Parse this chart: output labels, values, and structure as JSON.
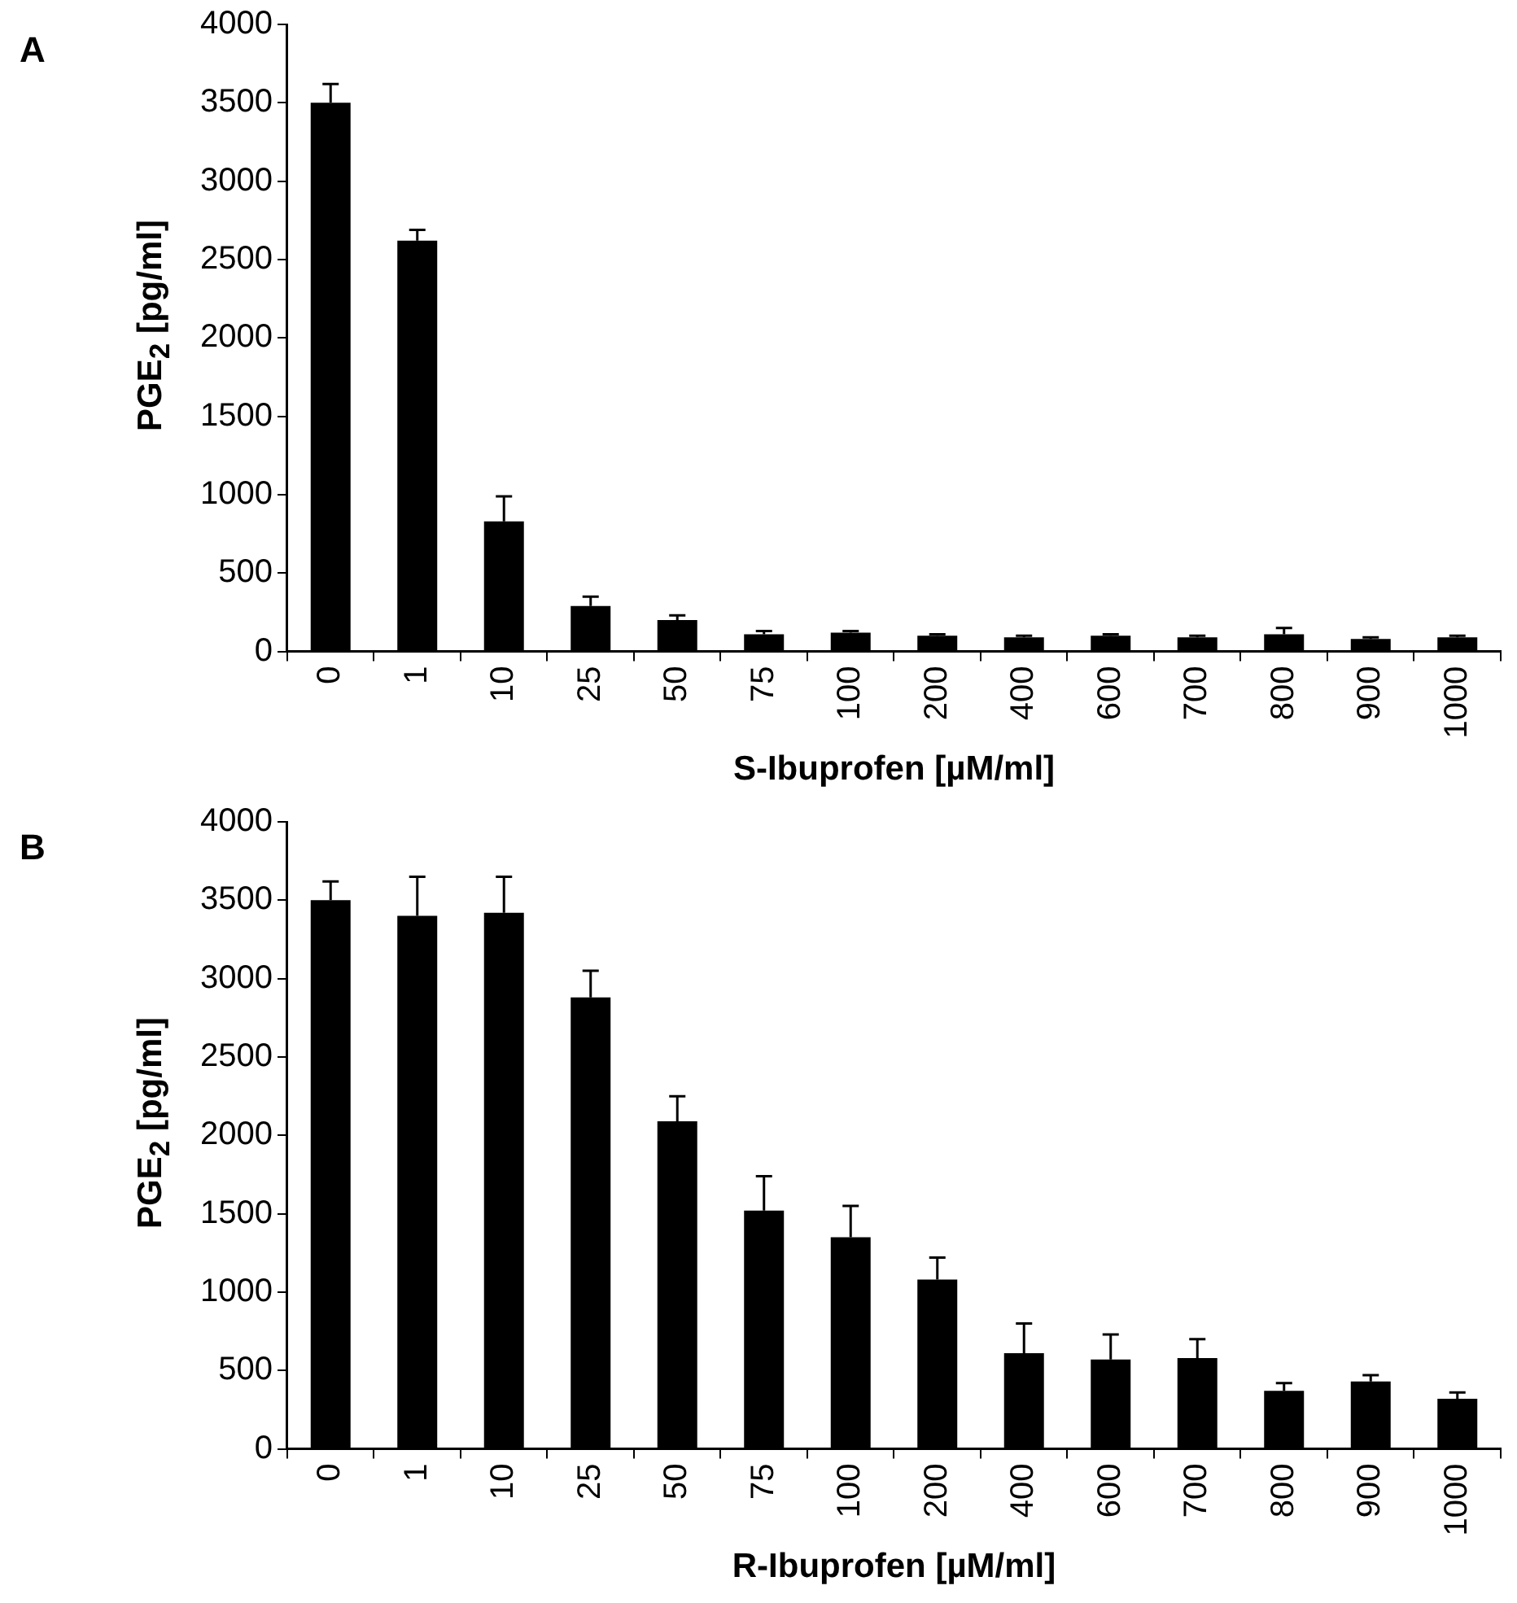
{
  "chart_data": [
    {
      "type": "bar",
      "annotations": [
        "A"
      ],
      "xlabel": "S-Ibuprofen [µM/ml]",
      "ylabel": "PGE$_{2}$ [pg/ml]",
      "categories": [
        "0",
        "1",
        "10",
        "25",
        "50",
        "75",
        "100",
        "200",
        "400",
        "600",
        "700",
        "800",
        "900",
        "1000"
      ],
      "values": [
        3500,
        2620,
        830,
        290,
        200,
        110,
        120,
        100,
        90,
        100,
        90,
        110,
        80,
        90
      ],
      "errors": [
        [
          3500,
          3620
        ],
        [
          2620,
          2690
        ],
        [
          830,
          990
        ],
        [
          290,
          350
        ],
        [
          200,
          230
        ],
        [
          110,
          130
        ],
        [
          120,
          130
        ],
        [
          100,
          110
        ],
        [
          90,
          100
        ],
        [
          100,
          110
        ],
        [
          90,
          100
        ],
        [
          110,
          150
        ],
        [
          80,
          90
        ],
        [
          90,
          100
        ]
      ],
      "color": "#000000",
      "ylim": [
        0,
        4000
      ],
      "yticks": [
        0,
        500,
        1000,
        1500,
        2000,
        2500,
        3000,
        3500,
        4000
      ]
    },
    {
      "type": "bar",
      "annotations": [
        "B"
      ],
      "xlabel": "R-Ibuprofen [µM/ml]",
      "ylabel": "PGE$_{2}$ [pg/ml]",
      "categories": [
        "0",
        "1",
        "10",
        "25",
        "50",
        "75",
        "100",
        "200",
        "400",
        "600",
        "700",
        "800",
        "900",
        "1000"
      ],
      "values": [
        3500,
        3400,
        3420,
        2880,
        2090,
        1520,
        1350,
        1080,
        610,
        570,
        580,
        370,
        430,
        320
      ],
      "errors": [
        [
          3500,
          3620
        ],
        [
          3400,
          3650
        ],
        [
          3420,
          3650
        ],
        [
          2880,
          3050
        ],
        [
          2090,
          2250
        ],
        [
          1520,
          1740
        ],
        [
          1350,
          1550
        ],
        [
          1080,
          1220
        ],
        [
          610,
          800
        ],
        [
          570,
          730
        ],
        [
          580,
          700
        ],
        [
          370,
          420
        ],
        [
          430,
          470
        ],
        [
          320,
          360
        ]
      ],
      "color": "#000000",
      "ylim": [
        0,
        4000
      ],
      "yticks": [
        0,
        500,
        1000,
        1500,
        2000,
        2500,
        3000,
        3500,
        4000
      ]
    }
  ]
}
